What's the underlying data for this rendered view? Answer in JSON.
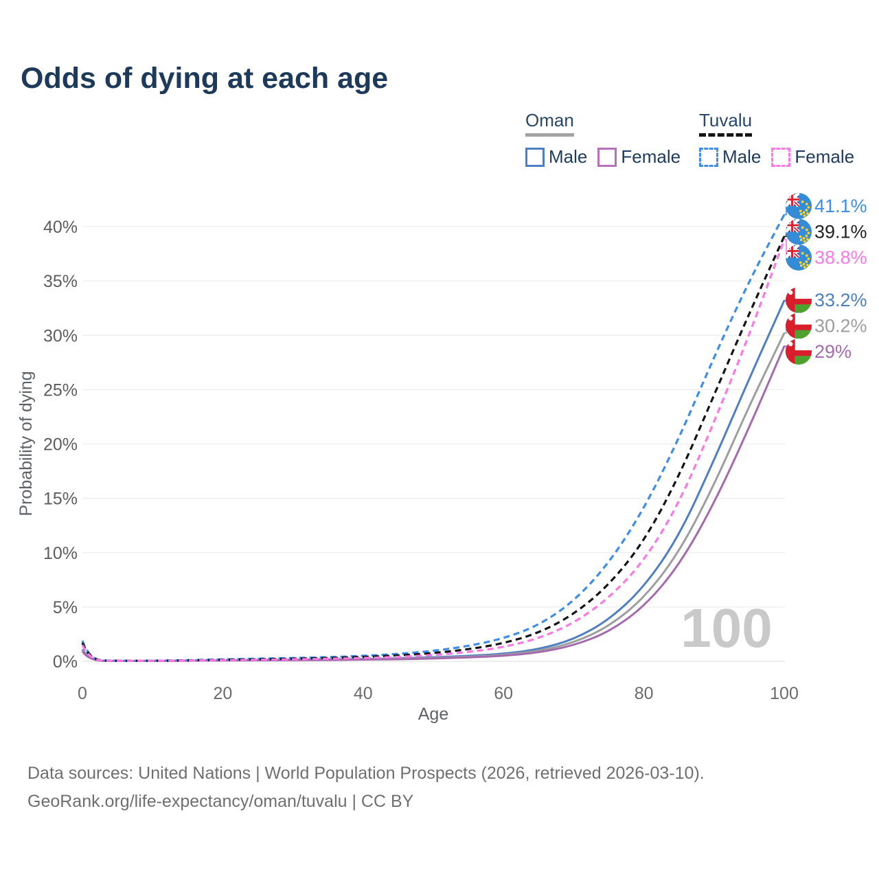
{
  "title": "Odds of dying at each age",
  "legend": {
    "groups": [
      {
        "country": "Oman",
        "line_style": "solid",
        "underline_color": "#a3a3a3",
        "items": [
          {
            "label": "Male",
            "color": "#4e7fc4",
            "dashed": false
          },
          {
            "label": "Female",
            "color": "#b671b8",
            "dashed": false
          }
        ]
      },
      {
        "country": "Tuvalu",
        "line_style": "dashed",
        "underline_color": "#141414",
        "items": [
          {
            "label": "Male",
            "color": "#3d8de9",
            "dashed": true
          },
          {
            "label": "Female",
            "color": "#fc78e3",
            "dashed": true
          }
        ]
      }
    ]
  },
  "chart_data": {
    "type": "line",
    "title": "Odds of dying at each age",
    "xlabel": "Age",
    "ylabel": "Probability of dying",
    "xlim": [
      0,
      100
    ],
    "ylim": [
      0,
      42
    ],
    "x_ticks": [
      0,
      20,
      40,
      60,
      80,
      100
    ],
    "y_ticks": [
      "0%",
      "5%",
      "10%",
      "15%",
      "20%",
      "25%",
      "30%",
      "35%",
      "40%"
    ],
    "grid": true,
    "watermark": "100",
    "ages": [
      0,
      1,
      5,
      10,
      15,
      20,
      25,
      30,
      35,
      40,
      45,
      50,
      55,
      60,
      65,
      70,
      75,
      80,
      85,
      90,
      95,
      100
    ],
    "series": [
      {
        "name": "Tuvalu Male",
        "group": "tuvalu",
        "color": "#3d8de9",
        "dashed": true,
        "end_label": "41.1%",
        "flag": "tuvalu",
        "values": [
          1.9,
          0.1,
          0.05,
          0.06,
          0.1,
          0.18,
          0.24,
          0.3,
          0.38,
          0.5,
          0.68,
          0.95,
          1.4,
          2.1,
          3.3,
          5.5,
          9.0,
          14.0,
          20.5,
          28.0,
          35.0,
          41.1
        ]
      },
      {
        "name": "Tuvalu Both sexes",
        "group": "tuvalu",
        "color": "#141414",
        "dashed": true,
        "end_label": "39.1%",
        "flag": "tuvalu",
        "label_color": "#222222",
        "values": [
          1.7,
          0.09,
          0.05,
          0.05,
          0.08,
          0.14,
          0.19,
          0.24,
          0.3,
          0.4,
          0.54,
          0.75,
          1.1,
          1.65,
          2.6,
          4.3,
          7.0,
          11.0,
          17.0,
          24.5,
          32.0,
          39.1
        ]
      },
      {
        "name": "Tuvalu Female",
        "group": "tuvalu",
        "color": "#fc78e3",
        "dashed": true,
        "end_label": "38.8%",
        "flag": "tuvalu",
        "values": [
          1.5,
          0.08,
          0.04,
          0.05,
          0.07,
          0.11,
          0.14,
          0.18,
          0.23,
          0.3,
          0.4,
          0.57,
          0.85,
          1.3,
          2.1,
          3.5,
          5.8,
          9.2,
          14.5,
          22.0,
          30.0,
          38.8
        ]
      },
      {
        "name": "Oman Male",
        "group": "oman",
        "color": "#4e7fc4",
        "dashed": false,
        "end_label": "33.2%",
        "flag": "oman",
        "values": [
          1.1,
          0.06,
          0.03,
          0.04,
          0.07,
          0.1,
          0.12,
          0.14,
          0.17,
          0.21,
          0.27,
          0.37,
          0.5,
          0.68,
          1.1,
          2.0,
          3.8,
          6.8,
          11.5,
          18.5,
          26.0,
          33.2
        ]
      },
      {
        "name": "Oman Both sexes",
        "group": "oman",
        "color": "#9e9e9e",
        "dashed": false,
        "end_label": "30.2%",
        "flag": "oman",
        "values": [
          1.0,
          0.06,
          0.03,
          0.04,
          0.06,
          0.09,
          0.1,
          0.12,
          0.14,
          0.18,
          0.23,
          0.31,
          0.42,
          0.58,
          0.95,
          1.7,
          3.2,
          5.8,
          10.0,
          16.2,
          23.5,
          30.2
        ]
      },
      {
        "name": "Oman Female",
        "group": "oman",
        "color": "#a569ad",
        "dashed": false,
        "end_label": "29%",
        "flag": "oman",
        "values": [
          0.9,
          0.05,
          0.03,
          0.03,
          0.05,
          0.07,
          0.09,
          0.1,
          0.12,
          0.15,
          0.19,
          0.26,
          0.36,
          0.5,
          0.8,
          1.45,
          2.7,
          5.0,
          8.8,
          14.5,
          21.5,
          29.0
        ]
      }
    ]
  },
  "footer": {
    "line1": "Data sources: United Nations | World Population Prospects (2026, retrieved 2026-03-10).",
    "line2": "GeoRank.org/life-expectancy/oman/tuvalu | CC BY"
  }
}
